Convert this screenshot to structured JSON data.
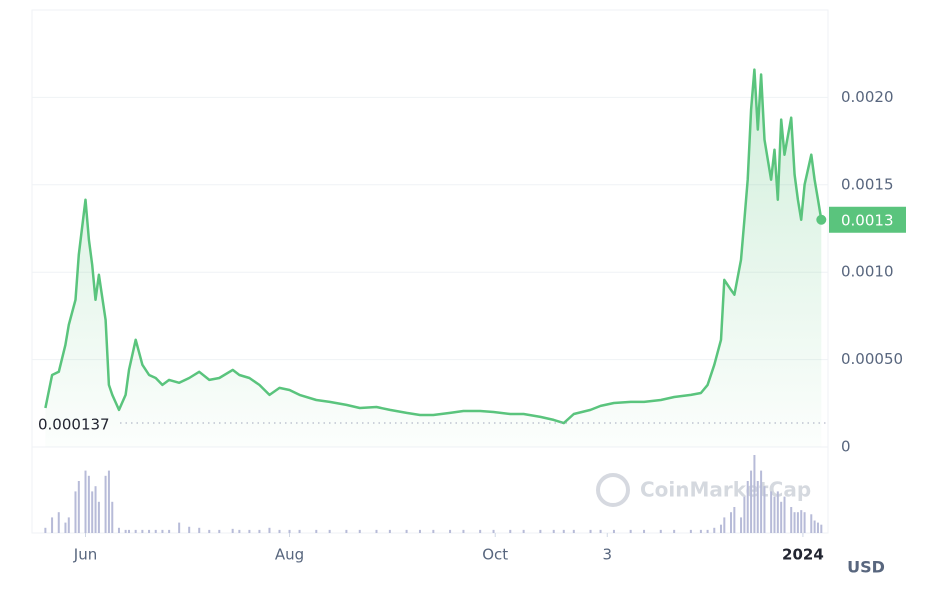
{
  "chart_data": {
    "type": "line",
    "watermark": "CoinMarketCap",
    "currency": "USD",
    "xlim": [
      0,
      238
    ],
    "xticks": [
      {
        "value": 16,
        "label": "Jun"
      },
      {
        "value": 77,
        "label": "Aug"
      },
      {
        "value": 138.5,
        "label": "Oct"
      },
      {
        "value": 172,
        "label": "3"
      },
      {
        "value": 230.5,
        "label": "2024"
      }
    ],
    "ylim": [
      0,
      0.0025
    ],
    "yticks": [
      0,
      {
        "value": 0.0005,
        "label": "0.00050"
      },
      {
        "value": 0.001,
        "label": "0.0010"
      },
      0.0015,
      {
        "value": 0.002,
        "label": "0.0020"
      }
    ],
    "grid": true,
    "x": [
      4,
      6,
      8,
      10,
      11,
      13,
      14,
      16,
      17,
      18,
      19,
      20,
      22,
      23,
      24,
      26,
      28,
      29,
      31,
      33,
      35,
      37,
      39,
      41,
      44,
      47,
      50,
      53,
      56,
      60,
      62,
      65,
      68,
      71,
      74,
      77,
      80,
      85,
      89,
      94,
      98,
      103,
      107,
      112,
      116,
      120,
      125,
      129,
      134,
      138,
      143,
      147,
      152,
      156,
      159,
      162,
      167,
      170,
      174,
      179,
      183,
      188,
      192,
      197,
      200,
      202,
      204,
      206,
      207,
      209,
      210,
      212,
      213,
      214,
      215,
      216,
      217,
      218,
      219,
      221,
      222,
      223,
      224,
      225,
      227,
      228,
      229,
      230,
      231,
      233,
      234,
      235,
      236
    ],
    "series": [
      {
        "color": "#5ac47d",
        "values": [
          0.000223,
          0.000412,
          0.00043,
          0.000584,
          0.000699,
          0.000842,
          0.0011,
          0.001415,
          0.001186,
          0.001042,
          0.000842,
          0.000985,
          0.000727,
          0.000355,
          0.000298,
          0.000212,
          0.000298,
          0.000441,
          0.000613,
          0.00047,
          0.000412,
          0.000395,
          0.000355,
          0.000384,
          0.000367,
          0.000395,
          0.00043,
          0.000384,
          0.000395,
          0.000441,
          0.000412,
          0.000395,
          0.000355,
          0.000298,
          0.000338,
          0.000326,
          0.000298,
          0.000269,
          0.000258,
          0.000241,
          0.000223,
          0.000229,
          0.000212,
          0.000195,
          0.000183,
          0.000183,
          0.000195,
          0.000206,
          0.000206,
          0.0002,
          0.000189,
          0.000189,
          0.000172,
          0.000155,
          0.000137,
          0.000189,
          0.000212,
          0.000235,
          0.000252,
          0.000258,
          0.000258,
          0.000269,
          0.000286,
          0.000298,
          0.000309,
          0.000355,
          0.00047,
          0.000613,
          0.000956,
          0.000899,
          0.000871,
          0.001071,
          0.0013,
          0.001529,
          0.00193,
          0.002159,
          0.001816,
          0.002131,
          0.001758,
          0.001529,
          0.001701,
          0.001415,
          0.001873,
          0.001672,
          0.001884,
          0.001558,
          0.001415,
          0.0013,
          0.001501,
          0.001672,
          0.001529,
          0.001415,
          0.0013
        ]
      }
    ],
    "volume_color": "#b7bbd8",
    "volume": [
      5,
      15,
      20,
      10,
      15,
      40,
      50,
      60,
      55,
      40,
      45,
      30,
      55,
      60,
      30,
      5,
      3,
      3,
      3,
      3,
      3,
      3,
      3,
      3,
      10,
      6,
      5,
      3,
      3,
      4,
      3,
      3,
      3,
      5,
      3,
      3,
      3,
      3,
      3,
      3,
      3,
      3,
      3,
      3,
      3,
      3,
      3,
      3,
      3,
      3,
      3,
      3,
      3,
      3,
      3,
      3,
      3,
      3,
      3,
      3,
      3,
      3,
      3,
      3,
      3,
      3,
      5,
      8,
      15,
      20,
      25,
      15,
      35,
      50,
      60,
      75,
      50,
      60,
      45,
      40,
      35,
      40,
      30,
      35,
      25,
      20,
      20,
      22,
      20,
      18,
      12,
      10,
      8
    ]
  }
}
